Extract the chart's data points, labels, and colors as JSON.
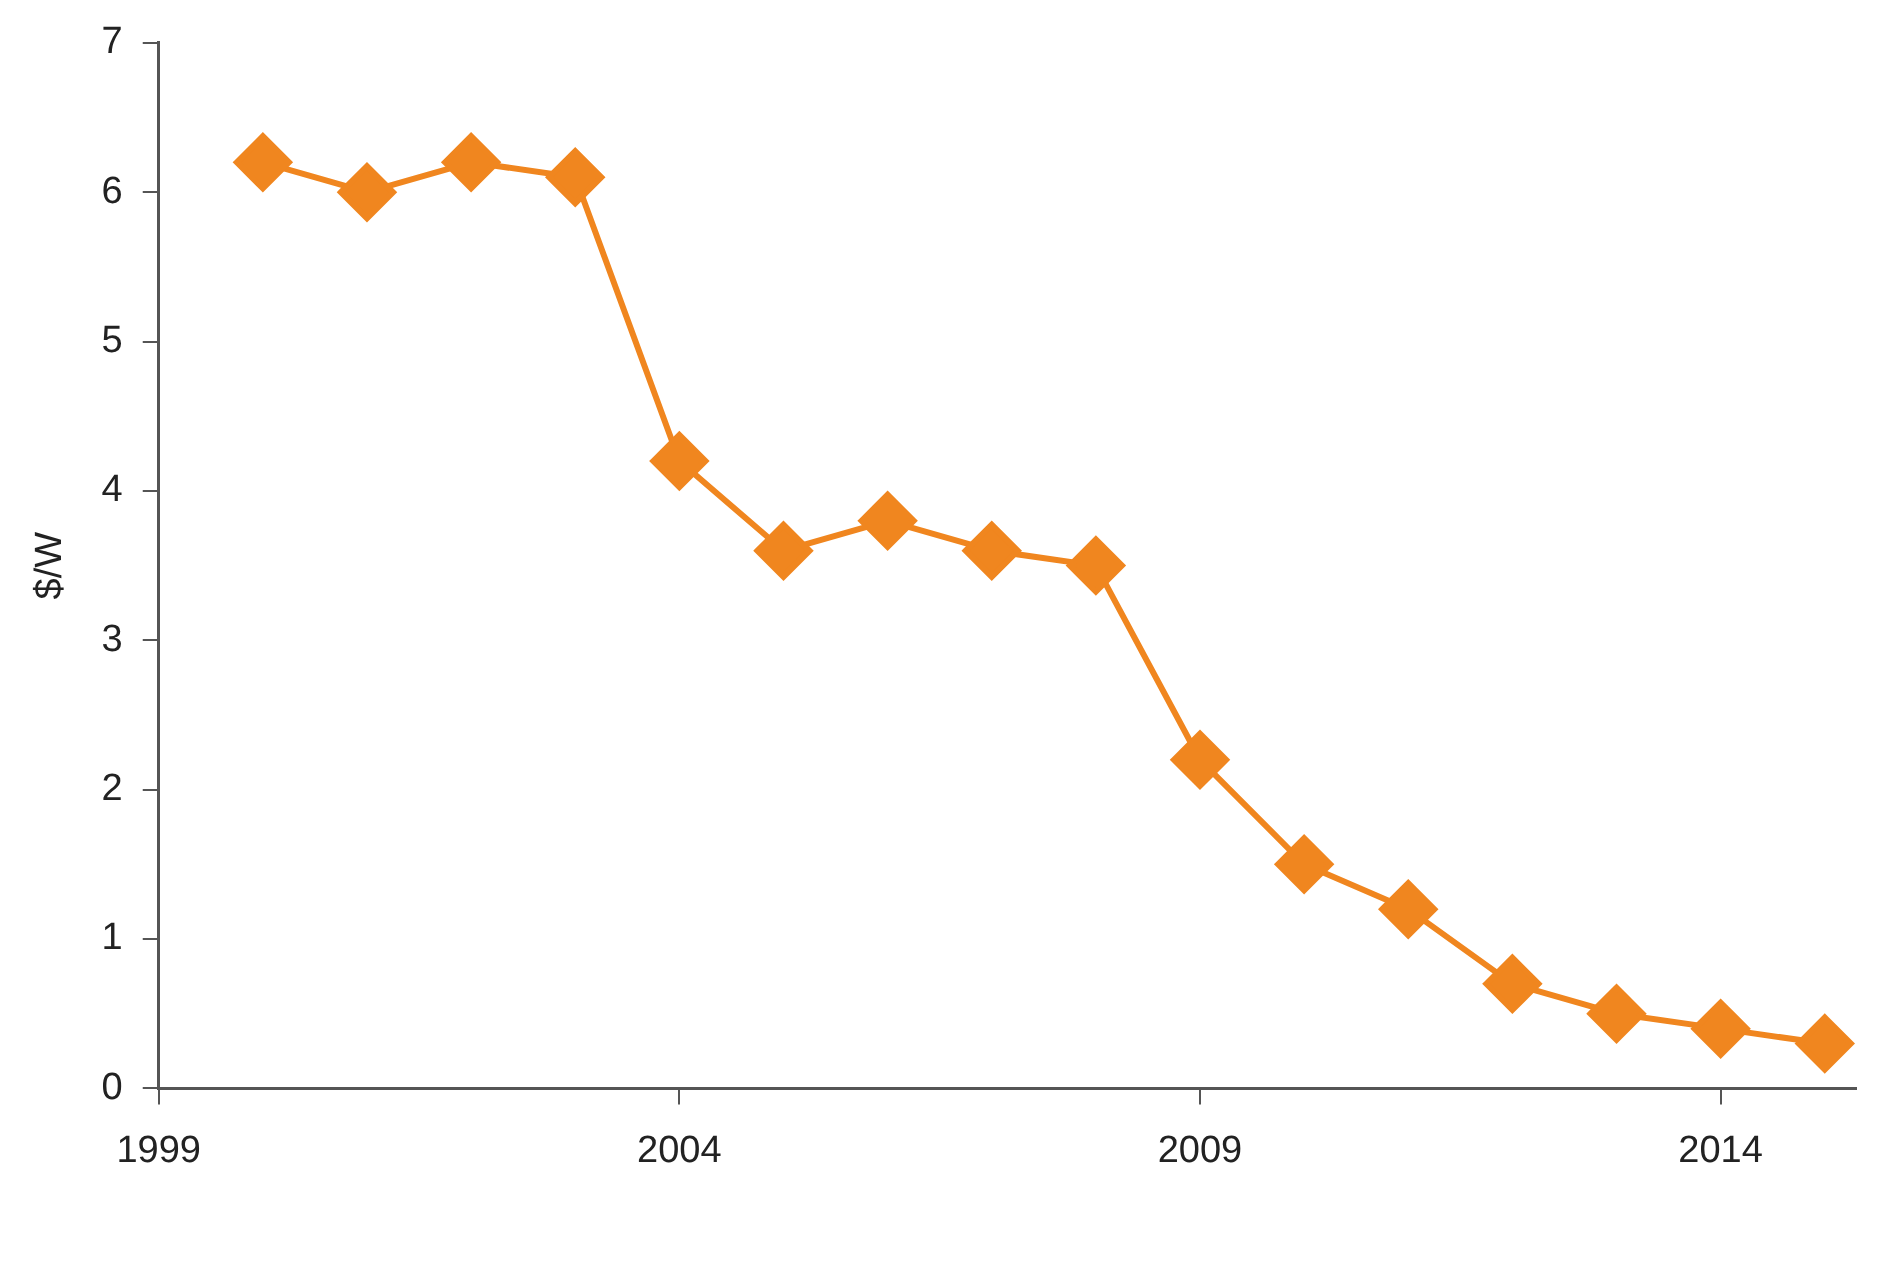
{
  "chart_data": {
    "type": "line",
    "ylabel": "$/W",
    "x": [
      2000,
      2001,
      2002,
      2003,
      2004,
      2005,
      2006,
      2007,
      2008,
      2009,
      2010,
      2011,
      2012,
      2013,
      2014,
      2015
    ],
    "series": [
      {
        "color": "#f0861f",
        "values": [
          6.2,
          6.0,
          6.2,
          6.1,
          4.2,
          3.6,
          3.8,
          3.6,
          3.5,
          2.2,
          1.5,
          1.2,
          0.7,
          0.5,
          0.4,
          0.3
        ]
      }
    ],
    "xlim": [
      1999,
      2015.3
    ],
    "xticks": [
      1999,
      2004,
      2009,
      2014
    ],
    "ylim": [
      0,
      7
    ],
    "yticks": [
      0,
      1,
      2,
      3,
      4,
      5,
      6,
      7
    ],
    "grid": false,
    "legend": false,
    "marker": "diamond",
    "line_style": "solid"
  }
}
